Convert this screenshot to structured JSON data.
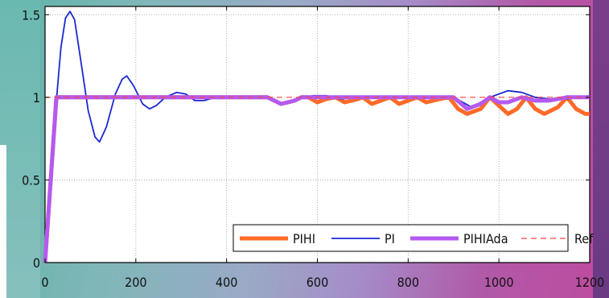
{
  "chart_data": {
    "type": "line",
    "title": "",
    "xlabel": "",
    "ylabel": "",
    "xlim": [
      0,
      1200
    ],
    "ylim": [
      0,
      1.55
    ],
    "xticks": [
      0,
      200,
      400,
      600,
      800,
      1000,
      1200
    ],
    "yticks": [
      0,
      0.5,
      1,
      1.5
    ],
    "xtick_labels": [
      "0",
      "200",
      "400",
      "600",
      "800",
      "1000",
      "1200"
    ],
    "ytick_labels": [
      "0",
      "0.5",
      "1",
      "1.5"
    ],
    "grid": true,
    "legend_position": "bottom-right",
    "series": [
      {
        "name": "PIHI",
        "color": "#ff6a28",
        "style": "solid-thick",
        "points": [
          [
            0,
            0
          ],
          [
            25,
            1
          ],
          [
            490,
            1
          ],
          [
            520,
            0.96
          ],
          [
            550,
            0.98
          ],
          [
            565,
            1
          ],
          [
            580,
            1
          ],
          [
            600,
            0.97
          ],
          [
            620,
            0.99
          ],
          [
            640,
            1
          ],
          [
            660,
            0.97
          ],
          [
            690,
            0.99
          ],
          [
            700,
            1
          ],
          [
            720,
            0.96
          ],
          [
            750,
            0.99
          ],
          [
            760,
            1
          ],
          [
            780,
            0.96
          ],
          [
            810,
            0.99
          ],
          [
            820,
            1
          ],
          [
            840,
            0.97
          ],
          [
            870,
            0.99
          ],
          [
            890,
            1
          ],
          [
            910,
            0.93
          ],
          [
            930,
            0.9
          ],
          [
            960,
            0.93
          ],
          [
            980,
            1
          ],
          [
            1000,
            0.95
          ],
          [
            1020,
            0.9
          ],
          [
            1040,
            0.93
          ],
          [
            1060,
            1
          ],
          [
            1080,
            0.93
          ],
          [
            1100,
            0.9
          ],
          [
            1130,
            0.94
          ],
          [
            1150,
            1
          ],
          [
            1170,
            0.93
          ],
          [
            1190,
            0.9
          ],
          [
            1200,
            0.9
          ]
        ]
      },
      {
        "name": "PI",
        "color": "#1a28d0",
        "style": "solid-thin",
        "points": [
          [
            0,
            0
          ],
          [
            25,
            0.98
          ],
          [
            35,
            1.3
          ],
          [
            45,
            1.48
          ],
          [
            55,
            1.52
          ],
          [
            65,
            1.47
          ],
          [
            80,
            1.2
          ],
          [
            95,
            0.92
          ],
          [
            110,
            0.76
          ],
          [
            120,
            0.73
          ],
          [
            135,
            0.82
          ],
          [
            155,
            1.02
          ],
          [
            170,
            1.11
          ],
          [
            180,
            1.13
          ],
          [
            195,
            1.07
          ],
          [
            215,
            0.96
          ],
          [
            230,
            0.93
          ],
          [
            245,
            0.95
          ],
          [
            265,
            1.0
          ],
          [
            290,
            1.03
          ],
          [
            310,
            1.02
          ],
          [
            330,
            0.98
          ],
          [
            350,
            0.98
          ],
          [
            375,
            1.0
          ],
          [
            490,
            1.0
          ],
          [
            520,
            0.96
          ],
          [
            560,
            0.99
          ],
          [
            590,
            1.01
          ],
          [
            620,
            1.01
          ],
          [
            650,
            0.99
          ],
          [
            700,
            1.0
          ],
          [
            900,
            1.0
          ],
          [
            940,
            0.94
          ],
          [
            980,
            1.0
          ],
          [
            1020,
            1.04
          ],
          [
            1050,
            1.03
          ],
          [
            1080,
            1.0
          ],
          [
            1110,
            0.99
          ],
          [
            1150,
            0.99
          ],
          [
            1200,
            1.01
          ]
        ]
      },
      {
        "name": "PIHIAda",
        "color": "#b45af0",
        "style": "solid-thick",
        "points": [
          [
            0,
            0
          ],
          [
            25,
            1
          ],
          [
            490,
            1
          ],
          [
            520,
            0.96
          ],
          [
            550,
            0.98
          ],
          [
            565,
            1
          ],
          [
            900,
            1
          ],
          [
            930,
            0.93
          ],
          [
            960,
            0.96
          ],
          [
            980,
            1
          ],
          [
            1000,
            0.97
          ],
          [
            1020,
            0.97
          ],
          [
            1050,
            1
          ],
          [
            1080,
            0.98
          ],
          [
            1110,
            0.98
          ],
          [
            1150,
            1
          ],
          [
            1200,
            1
          ]
        ]
      },
      {
        "name": "Ref",
        "color": "#ff4040",
        "style": "dashed",
        "points": [
          [
            0,
            1
          ],
          [
            1200,
            1
          ]
        ]
      }
    ]
  }
}
